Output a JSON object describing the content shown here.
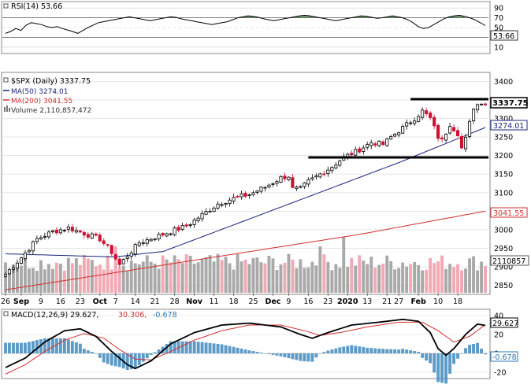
{
  "rsi_panel": {
    "legend": "RSI(14) 53.66",
    "legend_icon": "square-marker-icon",
    "value_tag": "53.66",
    "ticks": [
      "90",
      "70",
      "50",
      "30",
      "10"
    ],
    "levels": [
      90,
      70,
      50,
      30,
      10
    ],
    "overbought": 70,
    "oversold": 30,
    "line_color": "#000000",
    "fill_color": "#4e7d4e"
  },
  "price_panel": {
    "legend_title": "$SPX (Daily) 3337.75",
    "legend_ma50": "MA(50) 3274.01",
    "legend_ma200": "MA(200) 3041.55",
    "legend_volume": "Volume 2,110,857,472",
    "last_price_tag": "3337.75",
    "ma50_tag": "3274.01",
    "ma200_tag": "3041.55",
    "volume_tag": "2110857",
    "ticks": [
      "3400",
      "3350",
      "3300",
      "3250",
      "3200",
      "3150",
      "3100",
      "3050",
      "3000",
      "2950",
      "2900",
      "2850"
    ],
    "tick_values": [
      3400,
      3350,
      3300,
      3250,
      3200,
      3150,
      3100,
      3050,
      3000,
      2950,
      2900,
      2850
    ],
    "support_level": 3195,
    "resistance_level": 3352,
    "up_color": "#000000",
    "down_color": "#cc1133",
    "ma50_color": "#1a237e",
    "ma200_color": "#d32f2f",
    "volume_up_color": "#a9a9a9",
    "volume_down_color": "#f2a9b3"
  },
  "x_axis": {
    "labels": [
      "26",
      "Sep",
      "9",
      "16",
      "23",
      "Oct",
      "7",
      "14",
      "21",
      "28",
      "Nov",
      "11",
      "18",
      "25",
      "Dec",
      "9",
      "16",
      "23",
      "2020",
      "13",
      "21",
      "27",
      "Feb",
      "10",
      "18"
    ]
  },
  "macd_panel": {
    "legend_macd": "MACD(12,26,9) 29.627,",
    "legend_signal": "30.306,",
    "legend_hist": "-0.678",
    "macd_tag": "29.627",
    "hist_tag": "-0.678",
    "ticks": [
      "40",
      "20",
      "0",
      "-20"
    ],
    "levels": [
      40,
      20,
      0,
      -20
    ],
    "macd_color": "#000000",
    "signal_color": "#d32f2f",
    "hist_color": "#4a90c2"
  },
  "chart_data": [
    {
      "type": "line",
      "title": "RSI(14) 53.66",
      "ylim": [
        0,
        100
      ],
      "x_start": "2019-08-26",
      "x_end": "2020-02-21",
      "series": [
        {
          "name": "RSI(14)",
          "values": [
            38,
            42,
            48,
            44,
            55,
            60,
            58,
            56,
            52,
            50,
            52,
            48,
            45,
            42,
            38,
            44,
            50,
            55,
            60,
            62,
            64,
            66,
            68,
            70,
            72,
            70,
            68,
            66,
            64,
            66,
            68,
            70,
            72,
            71,
            68,
            66,
            64,
            62,
            60,
            58,
            56,
            58,
            60,
            62,
            66,
            70,
            72,
            74,
            73,
            71,
            68,
            66,
            64,
            66,
            68,
            70,
            72,
            74,
            75,
            74,
            72,
            70,
            68,
            66,
            64,
            66,
            68,
            70,
            72,
            74,
            73,
            71,
            69,
            70,
            72,
            74,
            72,
            70,
            66,
            60,
            52,
            48,
            50,
            56,
            62,
            68,
            72,
            74,
            75,
            73,
            70,
            66,
            60,
            54
          ]
        }
      ]
    },
    {
      "type": "candlestick",
      "title": "$SPX (Daily) 3337.75",
      "ylim": [
        2830,
        3420
      ],
      "x_start": "2019-08-26",
      "x_end": "2020-02-21",
      "last": 3337.75,
      "ma50_last": 3274.01,
      "ma200_last": 3041.55,
      "volume_last": 2110857472,
      "support": 3195,
      "resistance": 3352
    },
    {
      "type": "line",
      "title": "MACD(12,26,9) 29.627, 30.306, -0.678",
      "ylim": [
        -25,
        45
      ],
      "series": [
        {
          "name": "MACD(12,26,9)",
          "last": 29.627
        },
        {
          "name": "Signal",
          "last": 30.306
        },
        {
          "name": "Histogram",
          "last": -0.678
        }
      ]
    }
  ]
}
